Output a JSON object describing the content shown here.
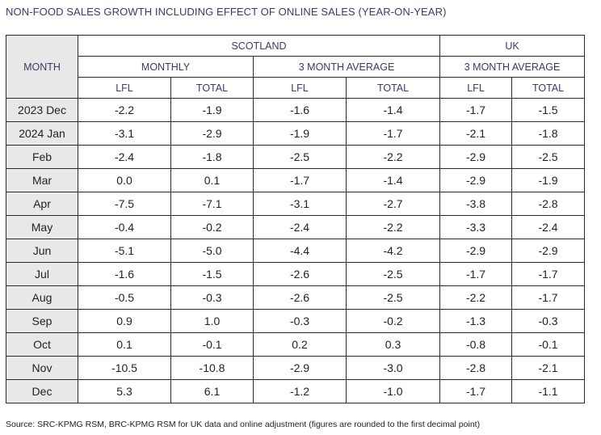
{
  "title": "NON-FOOD SALES GROWTH INCLUDING EFFECT OF ONLINE SALES (YEAR-ON-YEAR)",
  "headers": {
    "month": "MONTH",
    "scotland": "SCOTLAND",
    "uk": "UK",
    "monthly": "MONTHLY",
    "three_month_avg_scotland": "3 MONTH AVERAGE",
    "three_month_avg_uk": "3 MONTH AVERAGE",
    "lfl": "LFL",
    "total": "TOTAL"
  },
  "rows": [
    {
      "month": "2023 Dec",
      "values": [
        "-2.2",
        "-1.9",
        "-1.6",
        "-1.4",
        "-1.7",
        "-1.5"
      ]
    },
    {
      "month": "2024 Jan",
      "values": [
        "-3.1",
        "-2.9",
        "-1.9",
        "-1.7",
        "-2.1",
        "-1.8"
      ]
    },
    {
      "month": "Feb",
      "values": [
        "-2.4",
        "-1.8",
        "-2.5",
        "-2.2",
        "-2.9",
        "-2.5"
      ]
    },
    {
      "month": "Mar",
      "values": [
        "0.0",
        "0.1",
        "-1.7",
        "-1.4",
        "-2.9",
        "-1.9"
      ]
    },
    {
      "month": "Apr",
      "values": [
        "-7.5",
        "-7.1",
        "-3.1",
        "-2.7",
        "-3.8",
        "-2.8"
      ]
    },
    {
      "month": "May",
      "values": [
        "-0.4",
        "-0.2",
        "-2.4",
        "-2.2",
        "-3.3",
        "-2.4"
      ]
    },
    {
      "month": "Jun",
      "values": [
        "-5.1",
        "-5.0",
        "-4.4",
        "-4.2",
        "-2.9",
        "-2.9"
      ]
    },
    {
      "month": "Jul",
      "values": [
        "-1.6",
        "-1.5",
        "-2.6",
        "-2.5",
        "-1.7",
        "-1.7"
      ]
    },
    {
      "month": "Aug",
      "values": [
        "-0.5",
        "-0.3",
        "-2.6",
        "-2.5",
        "-2.2",
        "-1.7"
      ]
    },
    {
      "month": "Sep",
      "values": [
        "0.9",
        "1.0",
        "-0.3",
        "-0.2",
        "-1.3",
        "-0.3"
      ]
    },
    {
      "month": "Oct",
      "values": [
        "0.1",
        "-0.1",
        "0.2",
        "0.3",
        "-0.8",
        "-0.1"
      ]
    },
    {
      "month": "Nov",
      "values": [
        "-10.5",
        "-10.8",
        "-2.9",
        "-3.0",
        "-2.8",
        "-2.1"
      ]
    },
    {
      "month": "Dec",
      "values": [
        "5.3",
        "6.1",
        "-1.2",
        "-1.0",
        "-1.7",
        "-1.1"
      ]
    }
  ],
  "source": "Source: SRC-KPMG RSM, BRC-KPMG RSM for UK data and online adjustment (figures are rounded to the first decimal point)",
  "colors": {
    "header_text": "#3b3a69",
    "month_column_bg": "#e8e8e8",
    "border": "#2a2a2a"
  }
}
